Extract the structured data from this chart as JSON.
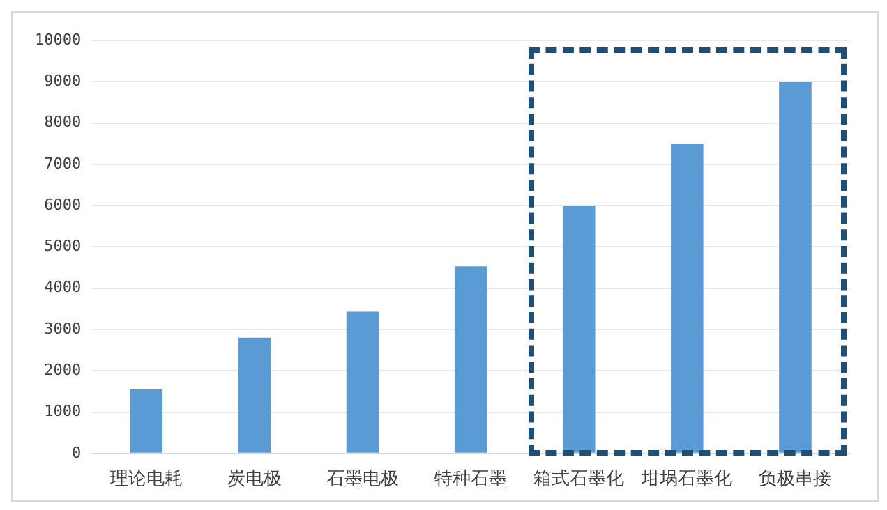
{
  "chart_data": {
    "type": "bar",
    "categories": [
      "理论电耗",
      "炭电极",
      "石墨电极",
      "特种石墨",
      "箱式石墨化",
      "坩埚石墨化",
      "负极串接"
    ],
    "values": [
      1550,
      2800,
      3430,
      4530,
      6000,
      7500,
      9000
    ],
    "color": "#5b9bd5",
    "ylim": [
      0,
      10000
    ],
    "yticks": [
      0,
      1000,
      2000,
      3000,
      4000,
      5000,
      6000,
      7000,
      8000,
      9000,
      10000
    ],
    "grid": "y",
    "legend": false
  }
}
